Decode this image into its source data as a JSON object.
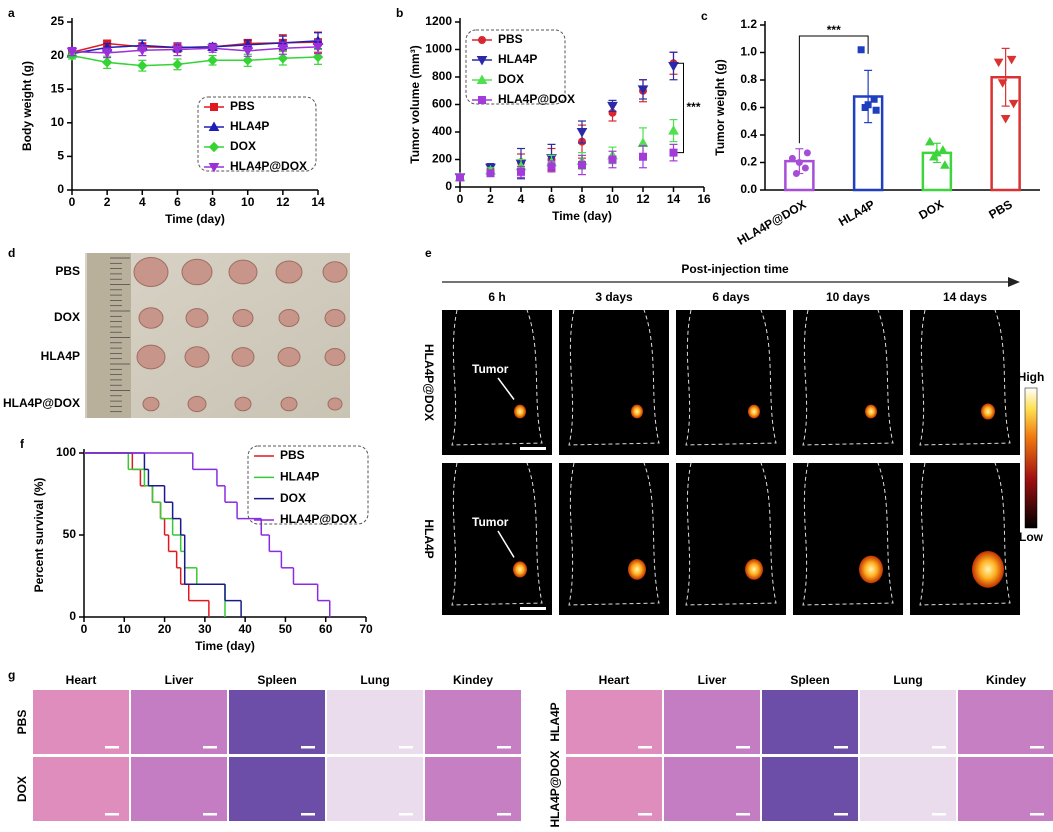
{
  "chart_data": [
    {
      "panel": "a",
      "type": "line",
      "x_label": "Time (day)",
      "y_label": "Body weight (g)",
      "xlim": [
        0,
        14
      ],
      "xticks": [
        0,
        2,
        4,
        6,
        8,
        10,
        12,
        14
      ],
      "ylim": [
        0,
        25
      ],
      "yticks": [
        0,
        5,
        10,
        15,
        20,
        25
      ],
      "x": [
        0,
        2,
        4,
        6,
        8,
        10,
        12,
        14
      ],
      "series": [
        {
          "name": "PBS",
          "color": "#e0191f",
          "marker": "square",
          "values": [
            20.5,
            21.8,
            21.3,
            21.2,
            21.3,
            21.8,
            21.9,
            22.0
          ],
          "errors": [
            0.5,
            0.4,
            0.6,
            0.7,
            0.4,
            0.6,
            1.2,
            1.5
          ]
        },
        {
          "name": "HLA4P",
          "color": "#1f1fb4",
          "marker": "triangle-up",
          "values": [
            20.3,
            21.2,
            21.5,
            21.2,
            21.3,
            21.6,
            21.9,
            22.2
          ],
          "errors": [
            0.5,
            0.6,
            0.8,
            0.6,
            0.5,
            0.7,
            1.0,
            1.2
          ]
        },
        {
          "name": "DOX",
          "color": "#35d435",
          "marker": "diamond",
          "values": [
            20.0,
            19.0,
            18.5,
            18.7,
            19.3,
            19.3,
            19.6,
            19.8
          ],
          "errors": [
            0.5,
            0.9,
            0.8,
            0.8,
            0.7,
            0.9,
            1.0,
            1.1
          ]
        },
        {
          "name": "HLA4P@DOX",
          "color": "#9b30d9",
          "marker": "triangle-down",
          "values": [
            20.6,
            20.4,
            20.8,
            20.9,
            21.1,
            20.7,
            21.1,
            21.3
          ],
          "errors": [
            0.6,
            0.7,
            0.8,
            0.9,
            0.6,
            0.8,
            0.9,
            1.0
          ]
        }
      ]
    },
    {
      "panel": "b",
      "type": "scatter",
      "x_label": "Time (day)",
      "y_label": "Tumor volume (mm³)",
      "annotation": "***",
      "xlim": [
        0,
        16
      ],
      "xticks": [
        0,
        2,
        4,
        6,
        8,
        10,
        12,
        14,
        16
      ],
      "ylim": [
        0,
        1200
      ],
      "yticks": [
        0,
        200,
        400,
        600,
        800,
        1000,
        1200
      ],
      "x": [
        0,
        2,
        4,
        6,
        8,
        10,
        12,
        14
      ],
      "series": [
        {
          "name": "PBS",
          "color": "#d9272e",
          "marker": "circle",
          "values": [
            70,
            130,
            180,
            200,
            330,
            540,
            700,
            900
          ],
          "errors": [
            5,
            30,
            60,
            80,
            120,
            60,
            80,
            80
          ]
        },
        {
          "name": "HLA4P",
          "color": "#2a2aa8",
          "marker": "triangle-down",
          "values": [
            70,
            140,
            170,
            210,
            400,
            590,
            710,
            880
          ],
          "errors": [
            5,
            30,
            110,
            100,
            80,
            40,
            70,
            100
          ]
        },
        {
          "name": "DOX",
          "color": "#4ee04e",
          "marker": "triangle-up",
          "values": [
            70,
            120,
            150,
            180,
            190,
            230,
            320,
            410
          ],
          "errors": [
            5,
            20,
            50,
            50,
            60,
            60,
            110,
            80
          ]
        },
        {
          "name": "HLA4P@DOX",
          "color": "#a23bd8",
          "marker": "square",
          "values": [
            70,
            100,
            110,
            150,
            160,
            200,
            220,
            250
          ],
          "errors": [
            5,
            20,
            40,
            40,
            70,
            60,
            80,
            60
          ]
        }
      ]
    },
    {
      "panel": "c",
      "type": "bar",
      "y_label": "Tumor weight (g)",
      "annotation": "***",
      "ylim": [
        0,
        1.2
      ],
      "yticks": [
        {
          "value": 0,
          "label": "0.0"
        },
        0.2,
        0.4,
        0.6,
        0.8,
        {
          "value": 1,
          "label": "1.0"
        },
        1.2
      ],
      "categories": [
        "HLA4P@DOX",
        "HLA4P",
        "DOX",
        "PBS"
      ],
      "values": [
        0.21,
        0.68,
        0.27,
        0.82
      ],
      "errors": [
        0.09,
        0.19,
        0.07,
        0.21
      ],
      "colors": [
        "#a64fd6",
        "#1f3fbf",
        "#3fd43f",
        "#d93232"
      ],
      "points": [
        [
          0.23,
          0.16,
          0.12,
          0.27,
          0.2
        ],
        [
          1.02,
          0.66,
          0.6,
          0.58,
          0.62
        ],
        [
          0.35,
          0.29,
          0.24,
          0.18,
          0.27
        ],
        [
          0.93,
          0.95,
          0.78,
          0.63,
          0.52
        ]
      ]
    },
    {
      "panel": "f",
      "type": "step",
      "x_label": "Time (day)",
      "y_label": "Percent survival (%)",
      "xlim": [
        0,
        70
      ],
      "xticks": [
        0,
        10,
        20,
        30,
        40,
        50,
        60,
        70
      ],
      "ylim": [
        0,
        100
      ],
      "yticks": [
        0,
        50,
        100
      ],
      "series": [
        {
          "name": "PBS",
          "color": "#e0191f",
          "x": [
            0,
            12,
            14,
            17,
            19,
            20,
            21,
            23,
            24,
            26,
            31
          ],
          "values": [
            100,
            90,
            80,
            70,
            60,
            50,
            40,
            30,
            20,
            10,
            0
          ]
        },
        {
          "name": "HLA4P",
          "color": "#35c935",
          "x": [
            0,
            11,
            15,
            17,
            19,
            22,
            24,
            25,
            28,
            35
          ],
          "values": [
            100,
            90,
            80,
            70,
            60,
            50,
            40,
            30,
            20,
            0
          ]
        },
        {
          "name": "DOX",
          "color": "#1a1a8c",
          "x": [
            0,
            15,
            16,
            20,
            22,
            24,
            25,
            35,
            39
          ],
          "values": [
            100,
            90,
            80,
            70,
            60,
            50,
            20,
            10,
            0
          ]
        },
        {
          "name": "HLA4P@DOX",
          "color": "#8a2be2",
          "x": [
            0,
            27,
            33,
            35,
            38,
            44,
            46,
            49,
            52,
            58,
            61
          ],
          "values": [
            100,
            90,
            80,
            70,
            60,
            50,
            40,
            30,
            20,
            10,
            0
          ]
        }
      ]
    }
  ],
  "photos": {
    "d": {
      "panel": "d",
      "rows": [
        "PBS",
        "DOX",
        "HLA4P",
        "HLA4P@DOX"
      ]
    },
    "e": {
      "panel": "e",
      "header": "Post-injection time",
      "times": [
        "6 h",
        "3 days",
        "6 days",
        "10 days",
        "14 days"
      ],
      "rows": [
        "HLA4P@DOX",
        "HLA4P"
      ],
      "tumor_label": "Tumor",
      "scale_high": "High",
      "scale_low": "Low"
    },
    "g": {
      "panel": "g",
      "organs": [
        "Heart",
        "Liver",
        "Spleen",
        "Lung",
        "Kindey"
      ],
      "left_rows": [
        "PBS",
        "DOX"
      ],
      "right_rows": [
        "HLA4P",
        "HLA4P@DOX"
      ]
    }
  }
}
